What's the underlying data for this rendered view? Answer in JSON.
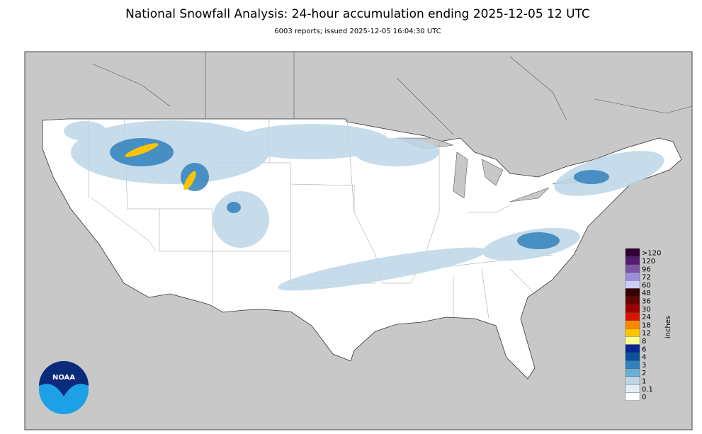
{
  "header": {
    "title": "National Snowfall Analysis: 24-hour accumulation ending 2025-12-05 12 UTC",
    "subtitle": "6003 reports; issued 2025-12-05 16:04:30 UTC"
  },
  "legend": {
    "title": "inches",
    "entries": [
      {
        "label": ">120",
        "color": "#2e0033"
      },
      {
        "label": "120",
        "color": "#561c72"
      },
      {
        "label": "96",
        "color": "#7c52a5"
      },
      {
        "label": "72",
        "color": "#9f8cd8"
      },
      {
        "label": "60",
        "color": "#ccccff"
      },
      {
        "label": "48",
        "color": "#360000"
      },
      {
        "label": "36",
        "color": "#690000"
      },
      {
        "label": "30",
        "color": "#9e0000"
      },
      {
        "label": "24",
        "color": "#db1400"
      },
      {
        "label": "18",
        "color": "#ff8700"
      },
      {
        "label": "12",
        "color": "#ffc400"
      },
      {
        "label": "8",
        "color": "#ffff96"
      },
      {
        "label": "6",
        "color": "#082694"
      },
      {
        "label": "4",
        "color": "#08519c"
      },
      {
        "label": "3",
        "color": "#3182bd"
      },
      {
        "label": "2",
        "color": "#6baed6"
      },
      {
        "label": "1",
        "color": "#bdd7e7"
      },
      {
        "label": "0.1",
        "color": "#e4eef9"
      },
      {
        "label": "0",
        "color": "#ffffff"
      }
    ]
  },
  "logo": {
    "text": "NOAA"
  }
}
